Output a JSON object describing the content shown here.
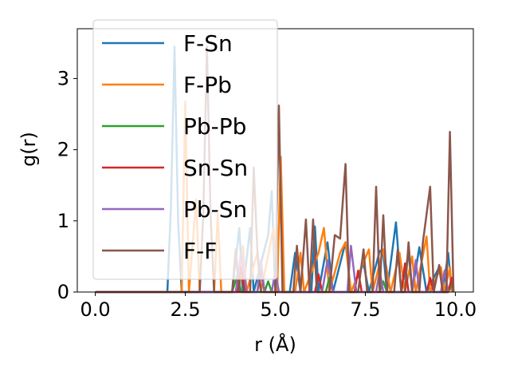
{
  "chart_data": {
    "type": "line",
    "xlabel": "r (Å)",
    "ylabel": "g(r)",
    "xlim": [
      -0.5,
      10.5
    ],
    "ylim": [
      0,
      3.7
    ],
    "xticks": [
      0.0,
      2.5,
      5.0,
      7.5,
      10.0
    ],
    "xtick_labels": [
      "0.0",
      "2.5",
      "5.0",
      "7.5",
      "10.0"
    ],
    "yticks": [
      0,
      1,
      2,
      3
    ],
    "ytick_labels": [
      "0",
      "1",
      "2",
      "3"
    ],
    "grid": false,
    "legend_position": "top-left",
    "series": [
      {
        "name": "F-Sn",
        "color": "#1f77b4",
        "points": [
          [
            0,
            0
          ],
          [
            2.0,
            0
          ],
          [
            2.1,
            1.2
          ],
          [
            2.2,
            3.45
          ],
          [
            2.3,
            1.0
          ],
          [
            2.4,
            0
          ],
          [
            3.8,
            0
          ],
          [
            4.0,
            0.9
          ],
          [
            4.1,
            0
          ],
          [
            4.3,
            0.9
          ],
          [
            4.4,
            0
          ],
          [
            4.8,
            0.8
          ],
          [
            4.9,
            1.42
          ],
          [
            5.0,
            0
          ],
          [
            5.4,
            0
          ],
          [
            5.55,
            0.55
          ],
          [
            5.7,
            0
          ],
          [
            6.0,
            0
          ],
          [
            6.1,
            0.92
          ],
          [
            6.2,
            0
          ],
          [
            6.45,
            0.7
          ],
          [
            6.6,
            0
          ],
          [
            6.95,
            0.7
          ],
          [
            7.1,
            0
          ],
          [
            7.45,
            0.4
          ],
          [
            7.6,
            0
          ],
          [
            7.9,
            0.58
          ],
          [
            8.0,
            0.55
          ],
          [
            8.1,
            0
          ],
          [
            8.35,
            0.98
          ],
          [
            8.5,
            0
          ],
          [
            8.7,
            0.55
          ],
          [
            8.8,
            0
          ],
          [
            9.0,
            0.63
          ],
          [
            9.2,
            0
          ],
          [
            9.55,
            0.35
          ],
          [
            9.65,
            0
          ],
          [
            9.8,
            0.55
          ],
          [
            9.9,
            0
          ]
        ]
      },
      {
        "name": "F-Pb",
        "color": "#ff7f0e",
        "points": [
          [
            0,
            0
          ],
          [
            2.4,
            0
          ],
          [
            2.5,
            2.68
          ],
          [
            2.6,
            0
          ],
          [
            2.8,
            1.3
          ],
          [
            2.9,
            0
          ],
          [
            3.3,
            0
          ],
          [
            3.4,
            1.1
          ],
          [
            3.5,
            0
          ],
          [
            4.0,
            0
          ],
          [
            4.1,
            0.65
          ],
          [
            4.2,
            0
          ],
          [
            4.5,
            0.55
          ],
          [
            4.6,
            0
          ],
          [
            4.95,
            0.9
          ],
          [
            5.05,
            0
          ],
          [
            5.15,
            1.9
          ],
          [
            5.25,
            0
          ],
          [
            5.55,
            0
          ],
          [
            5.7,
            0.55
          ],
          [
            5.8,
            0
          ],
          [
            6.2,
            0.55
          ],
          [
            6.35,
            0.9
          ],
          [
            6.5,
            0
          ],
          [
            6.8,
            0.55
          ],
          [
            6.95,
            0.7
          ],
          [
            7.1,
            0
          ],
          [
            7.6,
            0.6
          ],
          [
            7.7,
            0
          ],
          [
            8.0,
            0.6
          ],
          [
            8.2,
            0
          ],
          [
            8.45,
            0.55
          ],
          [
            8.6,
            0
          ],
          [
            8.8,
            0.5
          ],
          [
            8.9,
            0
          ],
          [
            9.2,
            0.78
          ],
          [
            9.3,
            0
          ],
          [
            9.6,
            0.35
          ],
          [
            9.7,
            0
          ],
          [
            9.85,
            0.35
          ],
          [
            9.9,
            0
          ]
        ]
      },
      {
        "name": "Pb-Pb",
        "color": "#2ca02c",
        "points": [
          [
            0,
            0
          ],
          [
            3.8,
            0
          ],
          [
            3.95,
            0.25
          ],
          [
            4.05,
            0
          ],
          [
            4.7,
            0
          ],
          [
            4.8,
            0.15
          ],
          [
            4.9,
            0
          ],
          [
            6.4,
            0
          ],
          [
            6.5,
            0.2
          ],
          [
            6.6,
            0
          ],
          [
            7.9,
            0
          ],
          [
            8.0,
            0.15
          ],
          [
            8.1,
            0
          ],
          [
            9.8,
            0
          ],
          [
            9.9,
            0.1
          ],
          [
            9.95,
            0
          ]
        ]
      },
      {
        "name": "Sn-Sn",
        "color": "#d62728",
        "points": [
          [
            0,
            0
          ],
          [
            3.95,
            0
          ],
          [
            4.05,
            0.35
          ],
          [
            4.15,
            0
          ],
          [
            4.5,
            0
          ],
          [
            4.6,
            0.3
          ],
          [
            4.7,
            0
          ],
          [
            6.1,
            0
          ],
          [
            6.2,
            0.25
          ],
          [
            6.3,
            0
          ],
          [
            7.2,
            0
          ],
          [
            7.3,
            0.3
          ],
          [
            7.4,
            0
          ],
          [
            8.5,
            0
          ],
          [
            8.6,
            0.4
          ],
          [
            8.7,
            0
          ],
          [
            9.2,
            0
          ],
          [
            9.3,
            0.2
          ],
          [
            9.4,
            0
          ],
          [
            9.8,
            0
          ],
          [
            9.9,
            0.2
          ],
          [
            9.95,
            0
          ]
        ]
      },
      {
        "name": "Pb-Sn",
        "color": "#9467bd",
        "points": [
          [
            0,
            0
          ],
          [
            3.9,
            0
          ],
          [
            4.05,
            0.55
          ],
          [
            4.2,
            0
          ],
          [
            4.5,
            0
          ],
          [
            4.6,
            0.45
          ],
          [
            4.7,
            0
          ],
          [
            4.9,
            0
          ],
          [
            5.0,
            0.3
          ],
          [
            5.1,
            0
          ],
          [
            6.3,
            0
          ],
          [
            6.45,
            0.45
          ],
          [
            6.6,
            0
          ],
          [
            7.0,
            0
          ],
          [
            7.1,
            0.65
          ],
          [
            7.25,
            0
          ],
          [
            7.8,
            0
          ],
          [
            7.9,
            0.3
          ],
          [
            8.0,
            0
          ],
          [
            8.8,
            0
          ],
          [
            8.9,
            0.45
          ],
          [
            9.0,
            0
          ],
          [
            9.6,
            0
          ],
          [
            9.7,
            0.3
          ],
          [
            9.8,
            0
          ]
        ]
      },
      {
        "name": "F-F",
        "color": "#8c564b",
        "points": [
          [
            0,
            0
          ],
          [
            2.9,
            0
          ],
          [
            3.0,
            1.1
          ],
          [
            3.1,
            3.45
          ],
          [
            3.2,
            1.1
          ],
          [
            3.3,
            0
          ],
          [
            3.8,
            0
          ],
          [
            3.9,
            0.6
          ],
          [
            4.0,
            0
          ],
          [
            4.3,
            0
          ],
          [
            4.4,
            1.75
          ],
          [
            4.5,
            0.6
          ],
          [
            4.6,
            0
          ],
          [
            5.0,
            0
          ],
          [
            5.1,
            2.62
          ],
          [
            5.2,
            0
          ],
          [
            5.5,
            0
          ],
          [
            5.6,
            0.65
          ],
          [
            5.7,
            0
          ],
          [
            5.85,
            1.02
          ],
          [
            5.95,
            0
          ],
          [
            6.05,
            1.02
          ],
          [
            6.15,
            0
          ],
          [
            6.5,
            0
          ],
          [
            6.65,
            0.8
          ],
          [
            6.8,
            0.75
          ],
          [
            6.95,
            1.8
          ],
          [
            7.05,
            0
          ],
          [
            7.3,
            0
          ],
          [
            7.45,
            0.6
          ],
          [
            7.55,
            0
          ],
          [
            7.7,
            0
          ],
          [
            7.8,
            1.48
          ],
          [
            7.9,
            0
          ],
          [
            8.0,
            1.08
          ],
          [
            8.1,
            0
          ],
          [
            8.3,
            0
          ],
          [
            8.4,
            0.6
          ],
          [
            8.5,
            0
          ],
          [
            8.6,
            0
          ],
          [
            8.7,
            0.7
          ],
          [
            8.8,
            0
          ],
          [
            9.0,
            0
          ],
          [
            9.1,
            0.7
          ],
          [
            9.3,
            1.48
          ],
          [
            9.4,
            0
          ],
          [
            9.55,
            0.38
          ],
          [
            9.65,
            0
          ],
          [
            9.75,
            0
          ],
          [
            9.85,
            2.25
          ],
          [
            9.95,
            0
          ]
        ]
      }
    ]
  }
}
